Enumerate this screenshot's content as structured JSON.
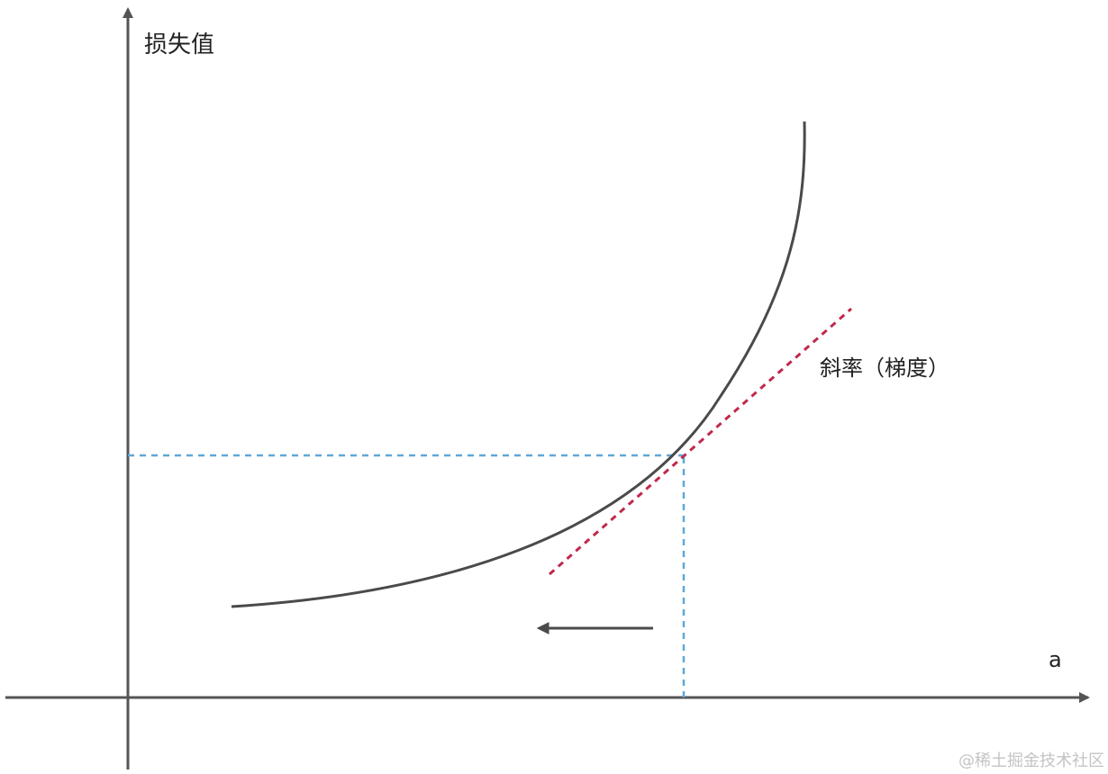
{
  "diagram": {
    "y_axis_label": "损失值",
    "x_axis_label": "a",
    "tangent_label": "斜率（梯度）",
    "watermark": "@稀土掘金技术社区"
  },
  "colors": {
    "axis": "#555555",
    "curve": "#4a4a4a",
    "tangent": "#c0284c",
    "guide": "#5fa8d8",
    "arrow": "#4a4a4a"
  }
}
